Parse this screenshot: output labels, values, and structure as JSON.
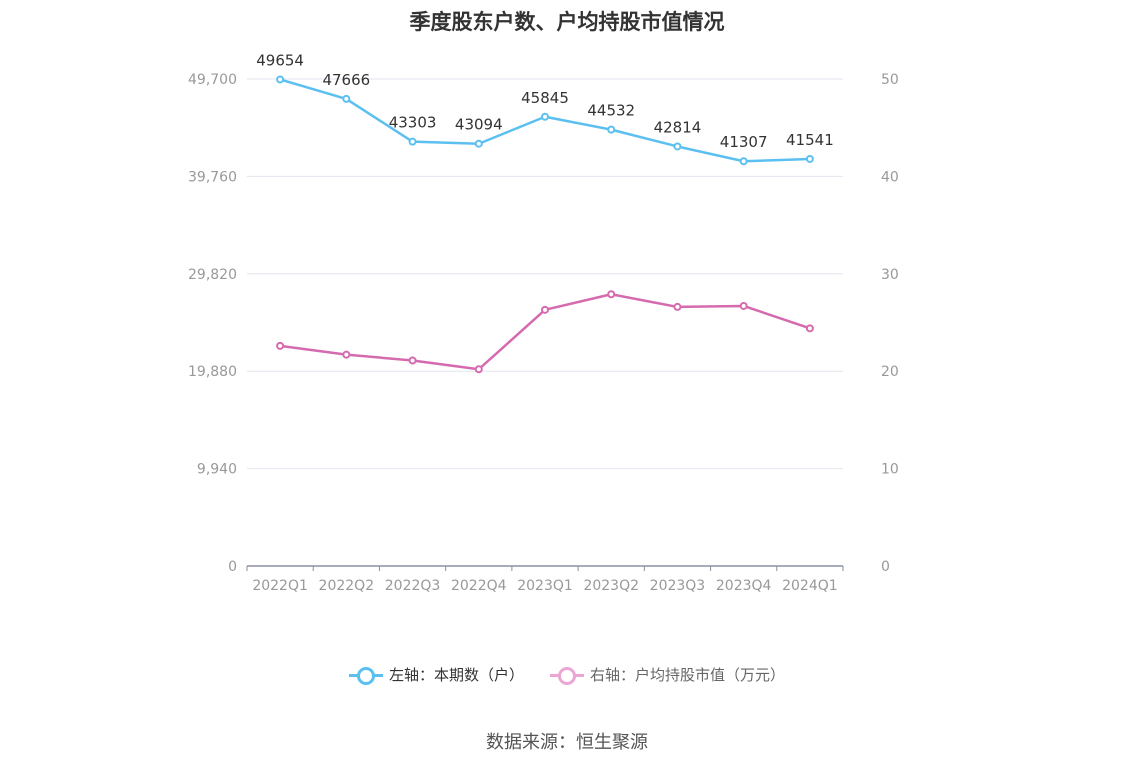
{
  "title": "季度股东户数、户均持股市值情况",
  "source": "数据来源：恒生聚源",
  "chart_data": {
    "type": "line",
    "categories": [
      "2022Q1",
      "2022Q2",
      "2022Q3",
      "2022Q4",
      "2023Q1",
      "2023Q2",
      "2023Q3",
      "2023Q4",
      "2024Q1"
    ],
    "series": [
      {
        "name": "左轴：本期数（户）",
        "axis": "left",
        "color": "#5bc0f0",
        "values": [
          49654,
          47666,
          43303,
          43094,
          45845,
          44532,
          42814,
          41307,
          41541
        ],
        "show_labels": true
      },
      {
        "name": "右轴：户均持股市值（万元）",
        "axis": "right",
        "color": "#d56aae",
        "legend_color": "#eba6d3",
        "values": [
          22.6,
          21.7,
          21.1,
          20.2,
          26.3,
          27.9,
          26.6,
          26.7,
          24.4
        ],
        "show_labels": false
      }
    ],
    "left_axis": {
      "ylim": [
        0,
        49700
      ],
      "ticks": [
        "0",
        "9,940",
        "19,880",
        "29,820",
        "39,760",
        "49,700"
      ]
    },
    "right_axis": {
      "ylim": [
        0,
        50
      ],
      "ticks": [
        "0",
        "10",
        "20",
        "30",
        "40",
        "50"
      ]
    },
    "grid": true,
    "legend_position": "bottom"
  }
}
